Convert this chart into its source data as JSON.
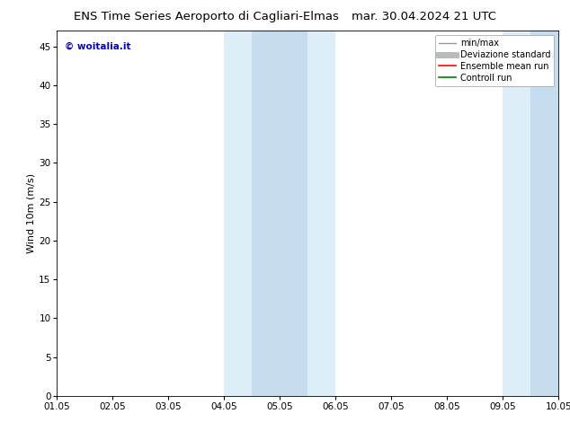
{
  "title_left": "ENS Time Series Aeroporto di Cagliari-Elmas",
  "title_right": "mar. 30.04.2024 21 UTC",
  "ylabel": "Wind 10m (m/s)",
  "ylim": [
    0,
    47
  ],
  "yticks": [
    0,
    5,
    10,
    15,
    20,
    25,
    30,
    35,
    40,
    45
  ],
  "xtick_labels": [
    "01.05",
    "02.05",
    "03.05",
    "04.05",
    "05.05",
    "06.05",
    "07.05",
    "08.05",
    "09.05",
    "10.05"
  ],
  "shaded_bands": [
    {
      "xmin": 3.0,
      "xmax": 3.5,
      "color": "#ddeef8"
    },
    {
      "xmin": 3.5,
      "xmax": 4.0,
      "color": "#c5ddef"
    },
    {
      "xmin": 4.0,
      "xmax": 4.5,
      "color": "#c5ddef"
    },
    {
      "xmin": 4.5,
      "xmax": 5.0,
      "color": "#ddeef8"
    },
    {
      "xmin": 8.0,
      "xmax": 8.5,
      "color": "#ddeef8"
    },
    {
      "xmin": 8.5,
      "xmax": 9.0,
      "color": "#c5ddef"
    }
  ],
  "watermark_text": "© woitalia.it",
  "watermark_color": "#0000cc",
  "legend_entries": [
    {
      "label": "min/max",
      "color": "#999999",
      "lw": 1.0
    },
    {
      "label": "Deviazione standard",
      "color": "#bbbbbb",
      "lw": 5
    },
    {
      "label": "Ensemble mean run",
      "color": "#ff0000",
      "lw": 1.2
    },
    {
      "label": "Controll run",
      "color": "#008000",
      "lw": 1.2
    }
  ],
  "bg_color": "#ffffff",
  "title_fontsize": 9.5,
  "ylabel_fontsize": 8,
  "tick_fontsize": 7.5,
  "watermark_fontsize": 7.5,
  "legend_fontsize": 7
}
